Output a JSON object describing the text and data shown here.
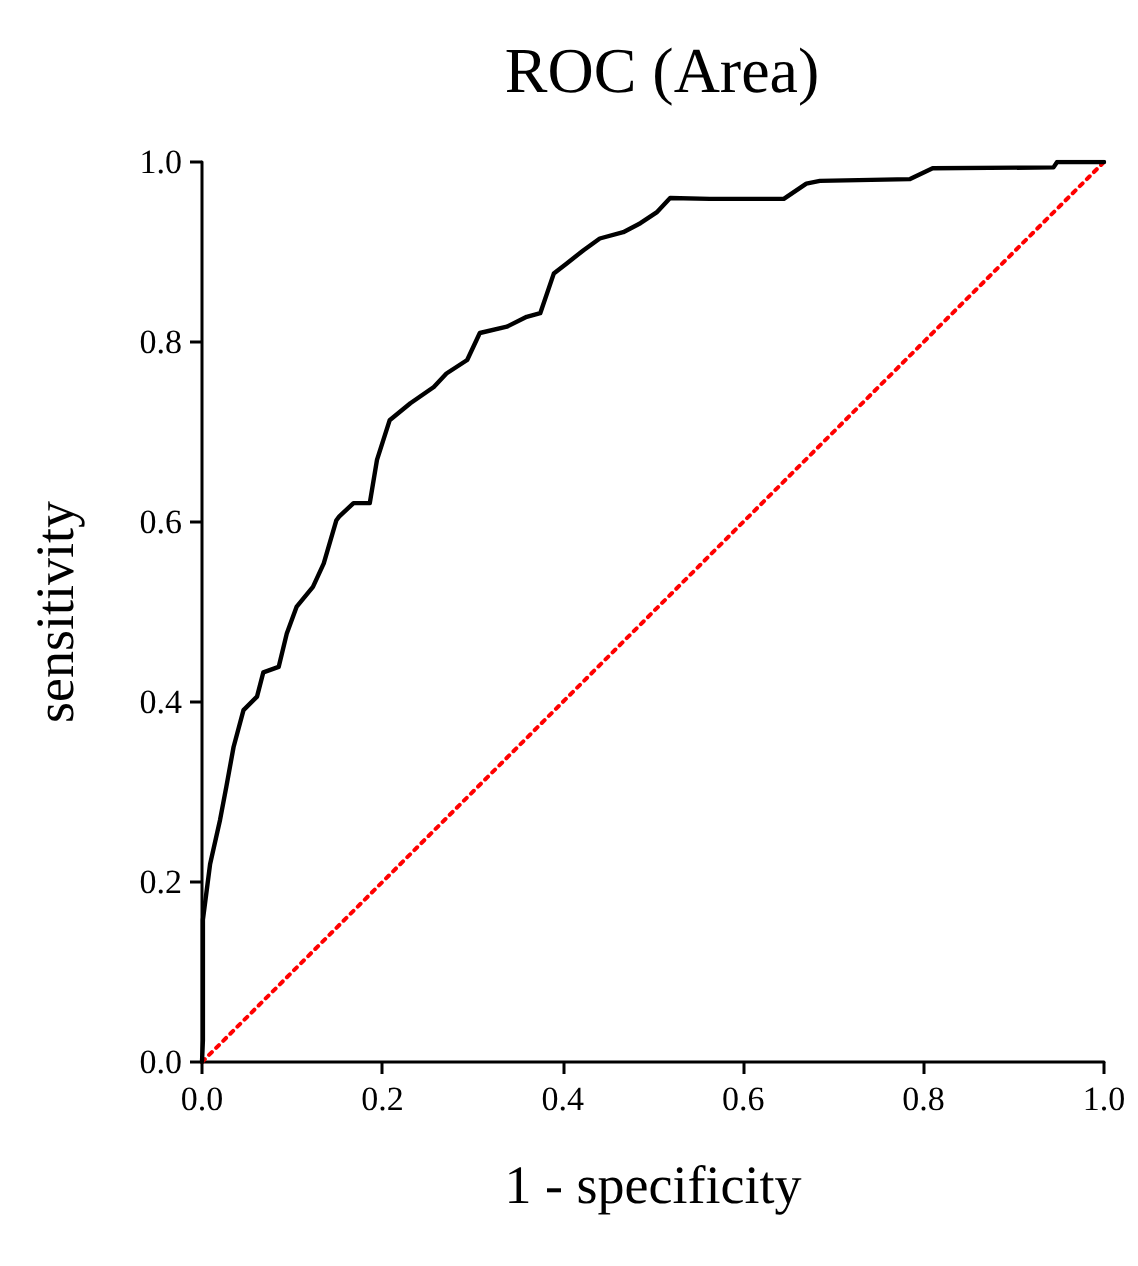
{
  "chart_data": {
    "type": "line",
    "title": "ROC (Area)",
    "xlabel": "1 - specificity",
    "ylabel": "sensitivity",
    "xlim": [
      0,
      1
    ],
    "ylim": [
      0,
      1
    ],
    "xticks": [
      {
        "value": 0,
        "label": "0.0"
      },
      {
        "value": 0.2,
        "label": "0.2"
      },
      {
        "value": 0.4,
        "label": "0.4"
      },
      {
        "value": 0.6,
        "label": "0.6"
      },
      {
        "value": 0.8,
        "label": "0.8"
      },
      {
        "value": 1,
        "label": "1.0"
      }
    ],
    "yticks": [
      {
        "value": 0,
        "label": "0.0"
      },
      {
        "value": 0.2,
        "label": "0.2"
      },
      {
        "value": 0.4,
        "label": "0.4"
      },
      {
        "value": 0.6,
        "label": "0.6"
      },
      {
        "value": 0.8,
        "label": "0.8"
      },
      {
        "value": 1,
        "label": "1.0"
      }
    ],
    "grid": false,
    "marker": "none",
    "series": [
      {
        "color": "#000000",
        "line_style": "solid",
        "x": [
          0,
          0.001,
          0.001,
          0.009,
          0.02,
          0.027,
          0.035,
          0.046,
          0.061,
          0.068,
          0.085,
          0.094,
          0.105,
          0.123,
          0.135,
          0.149,
          0.152,
          0.168,
          0.186,
          0.194,
          0.208,
          0.231,
          0.257,
          0.271,
          0.294,
          0.308,
          0.338,
          0.36,
          0.375,
          0.39,
          0.404,
          0.423,
          0.441,
          0.467,
          0.486,
          0.504,
          0.519,
          0.563,
          0.645,
          0.67,
          0.685,
          0.785,
          0.81,
          0.944,
          0.948,
          1
        ],
        "values": [
          0,
          0.024,
          0.158,
          0.22,
          0.269,
          0.306,
          0.35,
          0.391,
          0.406,
          0.433,
          0.439,
          0.476,
          0.506,
          0.528,
          0.554,
          0.602,
          0.606,
          0.621,
          0.621,
          0.669,
          0.713,
          0.732,
          0.75,
          0.765,
          0.78,
          0.81,
          0.817,
          0.828,
          0.832,
          0.876,
          0.887,
          0.902,
          0.915,
          0.922,
          0.932,
          0.944,
          0.96,
          0.959,
          0.959,
          0.976,
          0.979,
          0.981,
          0.993,
          0.994,
          1,
          1
        ]
      },
      {
        "color": "#ff0000",
        "line_style": "dotted",
        "x": [
          0,
          1
        ],
        "values": [
          0,
          1
        ]
      }
    ]
  }
}
